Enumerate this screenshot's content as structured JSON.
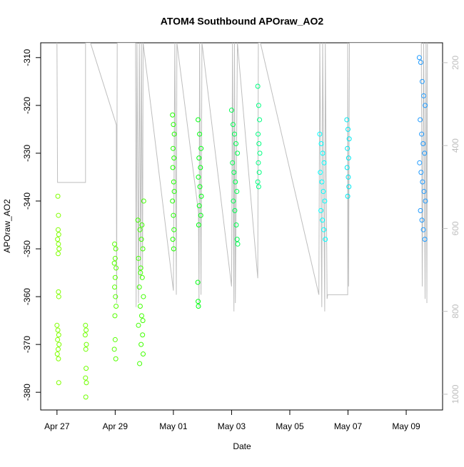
{
  "chart_data": {
    "type": "scatter",
    "title": "ATOM4 Southbound APOraw_AO2",
    "xlabel": "Date",
    "ylabel": "APOraw_AO2",
    "x": [
      117.03,
      117.05,
      117.04,
      117.06,
      117.02,
      117.05,
      117.07,
      117.04,
      117.05,
      117.06,
      117.0,
      117.03,
      117.06,
      117.02,
      117.07,
      117.04,
      117.01,
      117.05,
      117.06,
      117.98,
      118.0,
      117.97,
      118.01,
      117.99,
      118.0,
      117.98,
      118.01,
      117.99,
      118.98,
      119.02,
      119.0,
      118.97,
      119.03,
      119.0,
      118.98,
      119.01,
      119.03,
      118.99,
      119.0,
      118.97,
      119.02,
      119.78,
      119.85,
      119.9,
      119.95,
      119.8,
      119.88,
      119.93,
      119.83,
      119.97,
      119.86,
      119.91,
      119.8,
      119.94,
      119.89,
      119.96,
      119.84,
      119.98,
      119.92,
      119.87,
      119.95,
      120.97,
      121.0,
      121.03,
      120.99,
      121.02,
      120.98,
      121.01,
      121.03,
      120.97,
      121.0,
      121.02,
      120.98,
      121.01,
      121.85,
      121.9,
      121.95,
      121.88,
      121.93,
      121.86,
      121.91,
      121.96,
      121.89,
      121.94,
      121.87,
      121.84,
      121.85,
      121.86,
      123.0,
      123.05,
      123.1,
      123.15,
      123.2,
      123.03,
      123.08,
      123.13,
      123.18,
      123.06,
      123.11,
      123.16,
      123.19,
      123.21,
      123.9,
      123.93,
      123.96,
      123.91,
      123.94,
      123.97,
      123.92,
      123.95,
      123.9,
      123.93,
      126.03,
      126.08,
      126.13,
      126.18,
      126.05,
      126.1,
      126.15,
      126.2,
      126.07,
      126.12,
      126.17,
      126.22,
      126.96,
      127.0,
      127.04,
      126.98,
      127.02,
      126.97,
      127.01,
      127.03,
      126.99,
      129.45,
      129.5,
      129.55,
      129.6,
      129.65,
      129.48,
      129.53,
      129.58,
      129.63,
      129.46,
      129.51,
      129.56,
      129.61,
      129.66,
      129.49,
      129.54,
      129.59,
      129.64
    ],
    "values": [
      -339,
      -343,
      -346,
      -347,
      -348,
      -349,
      -350,
      -351,
      -359,
      -360,
      -366,
      -367,
      -368,
      -369,
      -370,
      -371,
      -372,
      -373,
      -378,
      -366,
      -367,
      -368,
      -370,
      -371,
      -375,
      -377,
      -378,
      -381,
      -349,
      -350,
      -352,
      -353,
      -354,
      -356,
      -358,
      -360,
      -362,
      -364,
      -369,
      -371,
      -373,
      -344,
      -346,
      -348,
      -350,
      -352,
      -354,
      -356,
      -358,
      -360,
      -362,
      -364,
      -366,
      -368,
      -370,
      -372,
      -374,
      -340,
      -345,
      -355,
      -365,
      -322,
      -324,
      -326,
      -329,
      -331,
      -333,
      -336,
      -338,
      -340,
      -343,
      -346,
      -348,
      -350,
      -323,
      -326,
      -329,
      -331,
      -333,
      -335,
      -337,
      -339,
      -341,
      -343,
      -345,
      -357,
      -361,
      -362,
      -321,
      -324,
      -326,
      -328,
      -330,
      -332,
      -334,
      -336,
      -338,
      -340,
      -342,
      -345,
      -348,
      -349,
      -316,
      -320,
      -323,
      -326,
      -328,
      -330,
      -332,
      -334,
      -336,
      -337,
      -326,
      -328,
      -330,
      -332,
      -334,
      -336,
      -338,
      -340,
      -342,
      -344,
      -346,
      -348,
      -323,
      -325,
      -327,
      -329,
      -331,
      -333,
      -335,
      -337,
      -339,
      -310,
      -311,
      -315,
      -318,
      -320,
      -323,
      -326,
      -328,
      -330,
      -332,
      -334,
      -336,
      -338,
      -340,
      -342,
      -344,
      -346,
      -348
    ],
    "colors": [
      "#80ff00",
      "#80ff00",
      "#80ff00",
      "#80ff00",
      "#80ff00",
      "#80ff00",
      "#80ff00",
      "#80ff00",
      "#80ff00",
      "#80ff00",
      "#80ff00",
      "#80ff00",
      "#80ff00",
      "#80ff00",
      "#80ff00",
      "#80ff00",
      "#80ff00",
      "#80ff00",
      "#80ff00",
      "#70ff00",
      "#70ff00",
      "#70ff00",
      "#70ff00",
      "#70ff00",
      "#70ff00",
      "#70ff00",
      "#70ff00",
      "#70ff00",
      "#55ff00",
      "#55ff00",
      "#55ff00",
      "#55ff00",
      "#55ff00",
      "#55ff00",
      "#55ff00",
      "#55ff00",
      "#55ff00",
      "#55ff00",
      "#55ff00",
      "#55ff00",
      "#55ff00",
      "#40ff00",
      "#40ff00",
      "#40ff00",
      "#40ff00",
      "#40ff00",
      "#40ff00",
      "#40ff00",
      "#40ff00",
      "#40ff00",
      "#40ff00",
      "#40ff00",
      "#40ff00",
      "#40ff00",
      "#40ff00",
      "#40ff00",
      "#40ff00",
      "#40ff00",
      "#40ff00",
      "#40ff00",
      "#40ff00",
      "#20ff00",
      "#20ff00",
      "#20ff00",
      "#20ff00",
      "#20ff00",
      "#20ff00",
      "#20ff00",
      "#20ff00",
      "#20ff00",
      "#20ff00",
      "#20ff00",
      "#20ff00",
      "#20ff00",
      "#00ff10",
      "#00ff10",
      "#00ff10",
      "#00ff10",
      "#00ff10",
      "#00ff10",
      "#00ff10",
      "#00ff10",
      "#00ff10",
      "#00ff10",
      "#00ff10",
      "#00ff10",
      "#00ff10",
      "#00ff10",
      "#00ff50",
      "#00ff50",
      "#00ff50",
      "#00ff50",
      "#00ff50",
      "#00ff50",
      "#00ff50",
      "#00ff50",
      "#00ff50",
      "#00ff50",
      "#00ff50",
      "#00ff50",
      "#00ff50",
      "#00ff50",
      "#00ff80",
      "#00ff80",
      "#00ff80",
      "#00ff80",
      "#00ff80",
      "#00ff80",
      "#00ff80",
      "#00ff80",
      "#00ff80",
      "#00ff80",
      "#00ffff",
      "#00ffff",
      "#00ffff",
      "#00ffff",
      "#00ffff",
      "#00ffff",
      "#00ffff",
      "#00ffff",
      "#00ffff",
      "#00ffff",
      "#00ffff",
      "#00ffff",
      "#00e8f0",
      "#00e8f0",
      "#00e8f0",
      "#00e8f0",
      "#00e8f0",
      "#00e8f0",
      "#00e8f0",
      "#00e8f0",
      "#00e8f0",
      "#1e9aff",
      "#1e9aff",
      "#1e9aff",
      "#1e9aff",
      "#1e9aff",
      "#1e9aff",
      "#1e9aff",
      "#1e9aff",
      "#1e9aff",
      "#1e9aff",
      "#1e9aff",
      "#1e9aff",
      "#1e9aff",
      "#1e9aff",
      "#1e9aff",
      "#1e9aff",
      "#1e9aff",
      "#1e9aff"
    ],
    "line": {
      "color": "#bebebe",
      "axis": "y2",
      "x": [
        117.0,
        117.02,
        117.98,
        117.98,
        118.15,
        119.04,
        119.05,
        119.07,
        119.7,
        119.72,
        119.75,
        119.8,
        119.83,
        119.88,
        119.9,
        119.94,
        119.96,
        121.0,
        121.05,
        121.1,
        121.12,
        121.86,
        121.88,
        121.9,
        121.95,
        121.98,
        123.0,
        123.03,
        123.08,
        123.1,
        123.13,
        123.2,
        123.9,
        123.92,
        123.99,
        126.0,
        126.03,
        126.1,
        126.13,
        126.2,
        126.22,
        126.28,
        126.3,
        126.99,
        126.99,
        127.02,
        127.05,
        129.52,
        129.55,
        129.6,
        129.65,
        129.68,
        129.71,
        129.73
      ],
      "values": [
        152,
        489,
        489,
        152,
        152,
        350,
        780,
        152,
        152,
        790,
        152,
        780,
        152,
        720,
        152,
        700,
        152,
        750,
        152,
        760,
        152,
        560,
        790,
        152,
        760,
        152,
        740,
        152,
        800,
        152,
        780,
        152,
        720,
        152,
        152,
        760,
        152,
        790,
        152,
        800,
        152,
        770,
        760,
        760,
        152,
        740,
        152,
        152,
        740,
        152,
        770,
        152,
        780,
        152
      ]
    },
    "xlim": [
      116.44,
      130.25
    ],
    "xticks": [
      {
        "value": 117,
        "label": "Apr 27"
      },
      {
        "value": 119,
        "label": "Apr 29"
      },
      {
        "value": 121,
        "label": "May 01"
      },
      {
        "value": 123,
        "label": "May 03"
      },
      {
        "value": 125,
        "label": "May 05"
      },
      {
        "value": 127,
        "label": "May 07"
      },
      {
        "value": 129,
        "label": "May 09"
      }
    ],
    "ylim": [
      -383.7,
      -306.9
    ],
    "yticks": [
      -380,
      -370,
      -360,
      -350,
      -340,
      -330,
      -320,
      -310
    ],
    "y2lim": [
      1038,
      152
    ],
    "y2ticks": [
      200,
      400,
      600,
      800,
      1000
    ]
  }
}
